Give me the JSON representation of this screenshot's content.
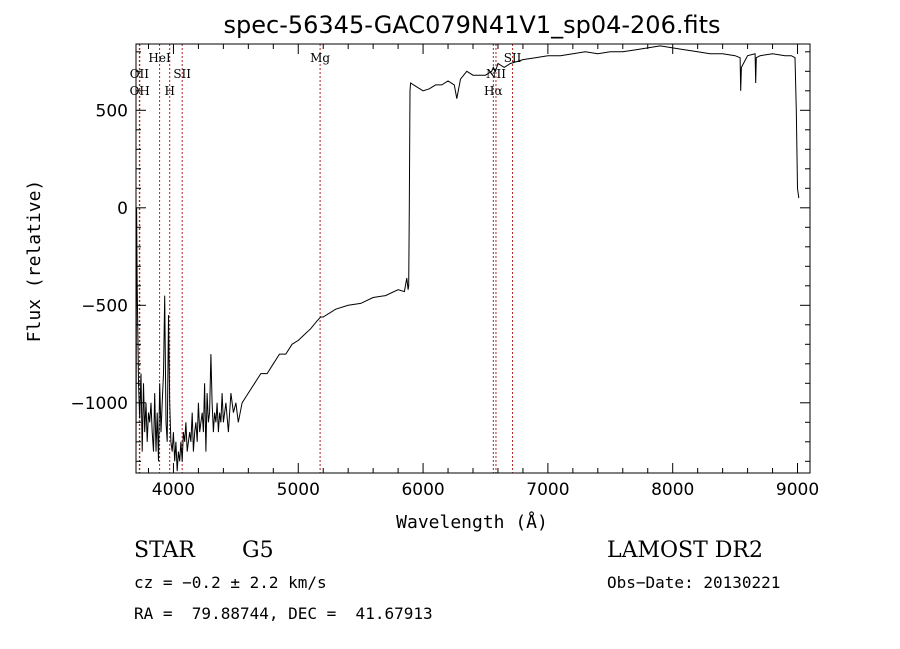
{
  "chart_data": {
    "type": "line",
    "title": "spec-56345-GAC079N41V1_sp04-206.fits",
    "xlabel": "Wavelength (Å)",
    "ylabel": "Flux (relative)",
    "xlim": [
      3700,
      9100
    ],
    "ylim": [
      -1360,
      840
    ],
    "xticks": [
      4000,
      5000,
      6000,
      7000,
      8000,
      9000
    ],
    "yticks": [
      -1000,
      -500,
      0,
      500
    ],
    "series": [
      {
        "x": [
          3700,
          3705,
          3710,
          3720,
          3730,
          3740,
          3750,
          3760,
          3770,
          3780,
          3790,
          3800,
          3810,
          3820,
          3830,
          3840,
          3850,
          3860,
          3870,
          3880,
          3890,
          3900,
          3910,
          3920,
          3930,
          3940,
          3950,
          3960,
          3970,
          3980,
          3990,
          4000,
          4010,
          4020,
          4030,
          4040,
          4050,
          4060,
          4070,
          4080,
          4090,
          4100,
          4110,
          4120,
          4130,
          4140,
          4150,
          4160,
          4170,
          4180,
          4190,
          4200,
          4210,
          4220,
          4230,
          4240,
          4250,
          4260,
          4270,
          4280,
          4290,
          4300,
          4310,
          4320,
          4330,
          4340,
          4350,
          4360,
          4370,
          4380,
          4390,
          4400,
          4420,
          4440,
          4460,
          4480,
          4500,
          4520,
          4550,
          4600,
          4650,
          4700,
          4750,
          4800,
          4850,
          4900,
          4950,
          5000,
          5050,
          5100,
          5150,
          5180,
          5200,
          5300,
          5400,
          5500,
          5600,
          5700,
          5800,
          5850,
          5870,
          5880,
          5885,
          5890,
          5895,
          5900,
          5950,
          6000,
          6050,
          6100,
          6150,
          6200,
          6250,
          6270,
          6300,
          6350,
          6400,
          6450,
          6500,
          6550,
          6563,
          6580,
          6600,
          6650,
          6700,
          6750,
          6800,
          6900,
          7000,
          7100,
          7200,
          7300,
          7400,
          7500,
          7600,
          7700,
          7800,
          7900,
          8000,
          8100,
          8200,
          8300,
          8400,
          8500,
          8540,
          8545,
          8550,
          8600,
          8660,
          8665,
          8670,
          8700,
          8800,
          8900,
          8950,
          8980,
          8990,
          9000,
          9010
        ],
        "values": [
          -1300,
          0,
          -400,
          -900,
          -1080,
          -850,
          -1250,
          -900,
          -1150,
          -1000,
          -1200,
          -1050,
          -1100,
          -1000,
          -1150,
          -1250,
          -950,
          -1250,
          -1050,
          -1300,
          -900,
          -1150,
          -1000,
          -850,
          -450,
          -1100,
          -1200,
          -550,
          -1000,
          -1200,
          -1250,
          -1150,
          -1300,
          -1200,
          -1350,
          -1250,
          -1300,
          -1200,
          -1300,
          -1150,
          -1200,
          -1100,
          -1250,
          -1200,
          -1150,
          -1200,
          -1050,
          -1250,
          -1150,
          -1100,
          -1200,
          -1000,
          -1150,
          -1100,
          -1050,
          -1150,
          -900,
          -1250,
          -950,
          -1100,
          -1050,
          -750,
          -1000,
          -1150,
          -1050,
          -1100,
          -1000,
          -1150,
          -1050,
          -1100,
          -950,
          -1100,
          -1000,
          -1150,
          -950,
          -1050,
          -1000,
          -1100,
          -1000,
          -950,
          -900,
          -850,
          -850,
          -800,
          -750,
          -750,
          -700,
          -680,
          -650,
          -620,
          -580,
          -560,
          -560,
          -520,
          -500,
          -490,
          -460,
          -450,
          -420,
          -430,
          -360,
          -420,
          -400,
          0,
          600,
          640,
          620,
          600,
          610,
          630,
          630,
          650,
          630,
          560,
          660,
          700,
          680,
          680,
          680,
          700,
          720,
          700,
          740,
          720,
          740,
          750,
          760,
          770,
          780,
          780,
          790,
          800,
          790,
          800,
          800,
          810,
          820,
          830,
          820,
          810,
          800,
          790,
          790,
          780,
          770,
          600,
          720,
          780,
          790,
          640,
          770,
          780,
          790,
          780,
          780,
          770,
          500,
          100,
          50
        ]
      }
    ],
    "lines": [
      {
        "x": 3727,
        "labels": [
          "OII"
        ],
        "row": 1
      },
      {
        "x": 3730,
        "labels": [
          "OH"
        ],
        "row": 2
      },
      {
        "x": 3889,
        "labels": [
          "HeI"
        ],
        "row": 0
      },
      {
        "x": 3970,
        "labels": [
          "H"
        ],
        "row": 2
      },
      {
        "x": 4070,
        "labels": [
          "SII"
        ],
        "row": 1
      },
      {
        "x": 5175,
        "labels": [
          "Mg"
        ],
        "row": 0
      },
      {
        "x": 6563,
        "labels": [
          "Hα"
        ],
        "row": 2
      },
      {
        "x": 6584,
        "labels": [
          "NII"
        ],
        "row": 1
      },
      {
        "x": 6717,
        "labels": [
          "SII"
        ],
        "row": 0
      }
    ]
  },
  "info": {
    "object_class": "STAR",
    "subclass": "G5",
    "survey": "LAMOST DR2",
    "cz": "cz = −0.2 ± 2.2 km/s",
    "obs_date": "Obs−Date: 20130221",
    "coords": "RA =  79.88744, DEC =  41.67913"
  }
}
